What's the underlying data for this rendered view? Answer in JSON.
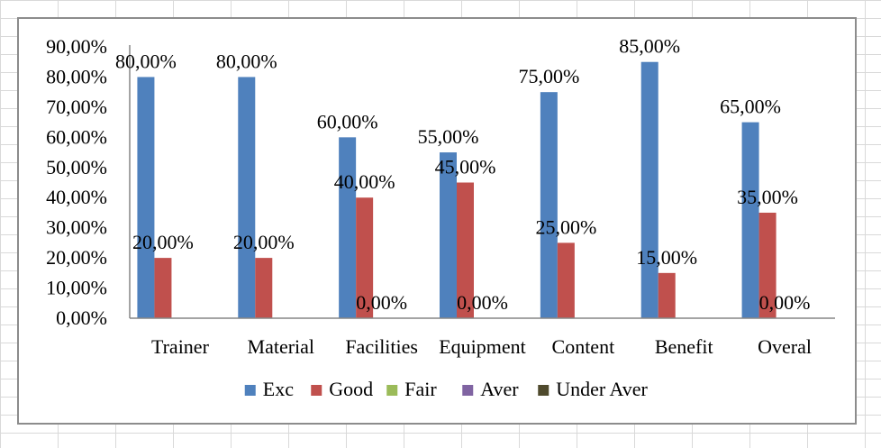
{
  "chart_data": {
    "type": "bar",
    "categories": [
      "Trainer",
      "Material",
      "Facilities",
      "Equipment",
      "Content",
      "Benefit",
      "Overal"
    ],
    "series": [
      {
        "name": "Exc",
        "color": "#4f81bd",
        "values": [
          80,
          80,
          60,
          55,
          75,
          85,
          65
        ],
        "labels": [
          "80,00%",
          "80,00%",
          "60,00%",
          "55,00%",
          "75,00%",
          "85,00%",
          "65,00%"
        ]
      },
      {
        "name": "Good",
        "color": "#c0504d",
        "values": [
          20,
          20,
          40,
          45,
          25,
          15,
          35
        ],
        "labels": [
          "20,00%",
          "20,00%",
          "40,00%",
          "45,00%",
          "25,00%",
          "15,00%",
          "35,00%"
        ]
      },
      {
        "name": "Fair",
        "color": "#9bbb59",
        "values": [
          0,
          0,
          0,
          0,
          0,
          0,
          0
        ],
        "labels": [
          "",
          "",
          "0,00%",
          "0,00%",
          "",
          "",
          "0,00%"
        ]
      },
      {
        "name": "Aver",
        "color": "#8064a2",
        "values": [
          0,
          0,
          0,
          0,
          0,
          0,
          0
        ],
        "labels": [
          "",
          "",
          "",
          "",
          "",
          "",
          ""
        ]
      },
      {
        "name": "Under Aver",
        "color": "#4f4a2d",
        "values": [
          0,
          0,
          0,
          0,
          0,
          0,
          0
        ],
        "labels": [
          "",
          "",
          "",
          "",
          "",
          "",
          ""
        ]
      }
    ],
    "yticks": [
      "0,00%",
      "10,00%",
      "20,00%",
      "30,00%",
      "40,00%",
      "50,00%",
      "60,00%",
      "70,00%",
      "80,00%",
      "90,00%"
    ],
    "ylim": [
      0,
      90
    ],
    "grid": false,
    "legend_position": "bottom"
  }
}
